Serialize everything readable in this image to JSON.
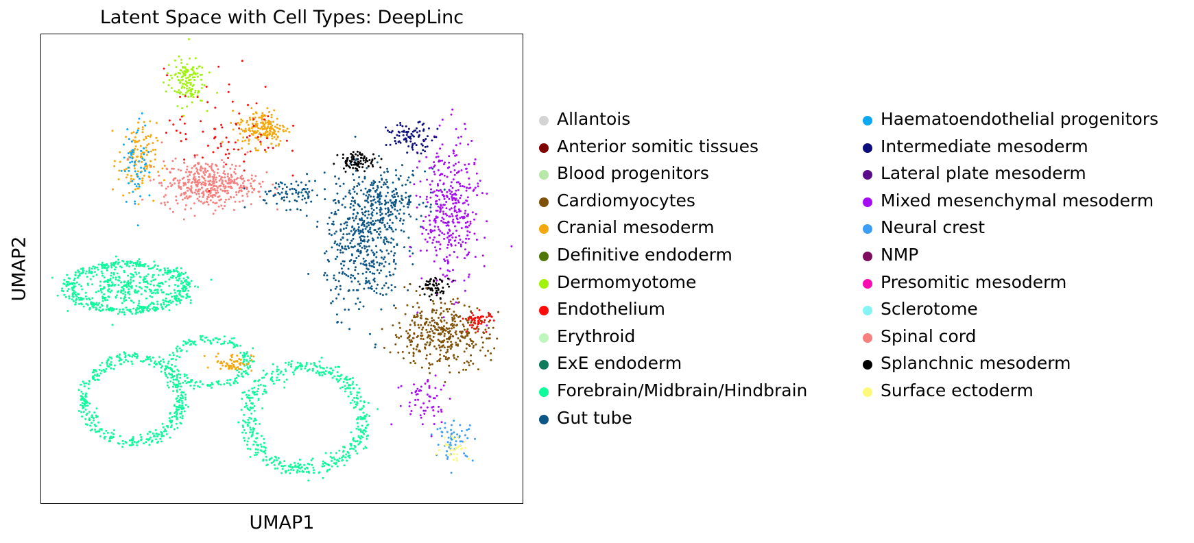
{
  "chart_data": {
    "type": "scatter",
    "title": "Latent Space with Cell Types: DeepLinc",
    "xlabel": "UMAP1",
    "ylabel": "UMAP2",
    "xlim": [
      0,
      100
    ],
    "ylim": [
      0,
      100
    ],
    "grid": false,
    "ticks": false,
    "legend_placement": "right",
    "legend_columns": 2,
    "legend": [
      {
        "name": "Allantois",
        "color": "#d3d3d3"
      },
      {
        "name": "Anterior somitic tissues",
        "color": "#800000"
      },
      {
        "name": "Blood progenitors",
        "color": "#b7e8a7"
      },
      {
        "name": "Cardiomyocytes",
        "color": "#7f5007"
      },
      {
        "name": "Cranial mesoderm",
        "color": "#f5a70e"
      },
      {
        "name": "Definitive endoderm",
        "color": "#4f7609"
      },
      {
        "name": "Dermomyotome",
        "color": "#a1f30e"
      },
      {
        "name": "Endothelium",
        "color": "#ff0a0a"
      },
      {
        "name": "Erythroid",
        "color": "#bef6bd"
      },
      {
        "name": "ExE endoderm",
        "color": "#0f7b5b"
      },
      {
        "name": "Forebrain/Midbrain/Hindbrain",
        "color": "#0efb9b"
      },
      {
        "name": "Gut tube",
        "color": "#0d5585"
      },
      {
        "name": "Haematoendothelial progenitors",
        "color": "#0ca8f1"
      },
      {
        "name": "Intermediate mesoderm",
        "color": "#0b0d7d"
      },
      {
        "name": "Lateral plate mesoderm",
        "color": "#5a0b8a"
      },
      {
        "name": "Mixed mesenchymal mesoderm",
        "color": "#a50cf4"
      },
      {
        "name": "Neural crest",
        "color": "#3d9ef5"
      },
      {
        "name": "NMP",
        "color": "#7d0c5e"
      },
      {
        "name": "Presomitic mesoderm",
        "color": "#fb0cb2"
      },
      {
        "name": "Sclerotome",
        "color": "#86f4f5"
      },
      {
        "name": "Spinal cord",
        "color": "#f7807e"
      },
      {
        "name": "Splanchnic mesoderm",
        "color": "#000000"
      },
      {
        "name": "Surface ectoderm",
        "color": "#fdfa7b"
      }
    ],
    "clusters": [
      {
        "name": "Forebrain/Midbrain/Hindbrain",
        "shape": "ring",
        "cx": 18,
        "cy": 46,
        "rx": 12,
        "ry": 5,
        "n": 420
      },
      {
        "name": "Forebrain/Midbrain/Hindbrain",
        "shape": "blob",
        "cx": 18,
        "cy": 46,
        "rx": 11,
        "ry": 4,
        "n": 260
      },
      {
        "name": "Forebrain/Midbrain/Hindbrain",
        "shape": "ring",
        "cx": 19,
        "cy": 22,
        "rx": 10,
        "ry": 9,
        "n": 420
      },
      {
        "name": "Forebrain/Midbrain/Hindbrain",
        "shape": "ring",
        "cx": 55,
        "cy": 18,
        "rx": 12,
        "ry": 11,
        "n": 500
      },
      {
        "name": "Forebrain/Midbrain/Hindbrain",
        "shape": "ring",
        "cx": 35,
        "cy": 30,
        "rx": 8,
        "ry": 5,
        "n": 180
      },
      {
        "name": "Cranial mesoderm",
        "shape": "blob",
        "cx": 40,
        "cy": 30,
        "rx": 4,
        "ry": 2,
        "n": 60
      },
      {
        "name": "Cranial mesoderm",
        "shape": "blob",
        "cx": 20,
        "cy": 73,
        "rx": 4,
        "ry": 8,
        "n": 120
      },
      {
        "name": "Cranial mesoderm",
        "shape": "blob",
        "cx": 46,
        "cy": 80,
        "rx": 5,
        "ry": 4,
        "n": 180
      },
      {
        "name": "Spinal cord",
        "shape": "blob",
        "cx": 35,
        "cy": 68,
        "rx": 10,
        "ry": 5,
        "n": 420
      },
      {
        "name": "Dermomyotome",
        "shape": "blob",
        "cx": 30,
        "cy": 90,
        "rx": 4,
        "ry": 5,
        "n": 140
      },
      {
        "name": "Endothelium",
        "shape": "blob",
        "cx": 38,
        "cy": 80,
        "rx": 12,
        "ry": 12,
        "n": 80
      },
      {
        "name": "Haematoendothelial progenitors",
        "shape": "blob",
        "cx": 20,
        "cy": 73,
        "rx": 3,
        "ry": 9,
        "n": 60
      },
      {
        "name": "Gut tube",
        "shape": "blob",
        "cx": 67,
        "cy": 55,
        "rx": 8,
        "ry": 14,
        "n": 450
      },
      {
        "name": "Gut tube",
        "shape": "blob",
        "cx": 72,
        "cy": 65,
        "rx": 8,
        "ry": 6,
        "n": 200
      },
      {
        "name": "Gut tube",
        "shape": "blob",
        "cx": 52,
        "cy": 66,
        "rx": 8,
        "ry": 3,
        "n": 80
      },
      {
        "name": "Mixed mesenchymal mesoderm",
        "shape": "blob",
        "cx": 85,
        "cy": 62,
        "rx": 6,
        "ry": 16,
        "n": 380
      },
      {
        "name": "Intermediate mesoderm",
        "shape": "blob",
        "cx": 77,
        "cy": 78,
        "rx": 5,
        "ry": 3,
        "n": 90
      },
      {
        "name": "Splanchnic mesoderm",
        "shape": "blob",
        "cx": 66,
        "cy": 73,
        "rx": 4,
        "ry": 2,
        "n": 90
      },
      {
        "name": "Splanchnic mesoderm",
        "shape": "blob",
        "cx": 82,
        "cy": 46,
        "rx": 3,
        "ry": 2,
        "n": 60
      },
      {
        "name": "Cardiomyocytes",
        "shape": "blob",
        "cx": 83,
        "cy": 36,
        "rx": 10,
        "ry": 7,
        "n": 380
      },
      {
        "name": "Endothelium",
        "shape": "blob",
        "cx": 91,
        "cy": 39,
        "rx": 3,
        "ry": 2,
        "n": 50
      },
      {
        "name": "Neural crest",
        "shape": "blob",
        "cx": 86,
        "cy": 13,
        "rx": 4,
        "ry": 4,
        "n": 60
      },
      {
        "name": "Mixed mesenchymal mesoderm",
        "shape": "blob",
        "cx": 80,
        "cy": 22,
        "rx": 6,
        "ry": 6,
        "n": 60
      },
      {
        "name": "Surface ectoderm",
        "shape": "blob",
        "cx": 86,
        "cy": 12,
        "rx": 3,
        "ry": 3,
        "n": 30
      }
    ]
  }
}
